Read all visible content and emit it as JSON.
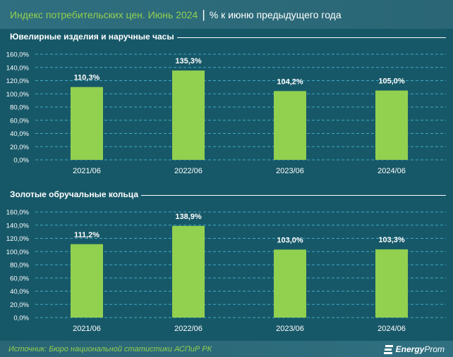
{
  "header": {
    "title": "Индекс потребительских цен. Июнь 2024",
    "separator": "|",
    "subtitle": "% к июню предыдущего года"
  },
  "chart_data": [
    {
      "type": "bar",
      "title": "Ювелирные изделия и наручные часы",
      "categories": [
        "2021/06",
        "2022/06",
        "2023/06",
        "2024/06"
      ],
      "values": [
        110.3,
        135.3,
        104.2,
        105.0
      ],
      "labels": [
        "110,3%",
        "135,3%",
        "104,2%",
        "105,0%"
      ],
      "yticks": [
        "0,0%",
        "20,0%",
        "40,0%",
        "60,0%",
        "80,0%",
        "100,0%",
        "120,0%",
        "140,0%",
        "160,0%"
      ],
      "ylim": [
        0,
        160
      ],
      "grid": true,
      "bar_color": "#92d050"
    },
    {
      "type": "bar",
      "title": "Золотые обручальные кольца",
      "categories": [
        "2021/06",
        "2022/06",
        "2023/06",
        "2024/06"
      ],
      "values": [
        111.2,
        138.9,
        103.0,
        103.3
      ],
      "labels": [
        "111,2%",
        "138,9%",
        "103,0%",
        "103,3%"
      ],
      "yticks": [
        "0,0%",
        "20,0%",
        "40,0%",
        "60,0%",
        "80,0%",
        "100,0%",
        "120,0%",
        "140,0%",
        "160,0%"
      ],
      "ylim": [
        0,
        160
      ],
      "grid": true,
      "bar_color": "#92d050"
    }
  ],
  "footer": {
    "source": "Источник: Бюро национальной статистики АСПиР РК",
    "logo_bold": "Energy",
    "logo_rest": "Prom"
  }
}
